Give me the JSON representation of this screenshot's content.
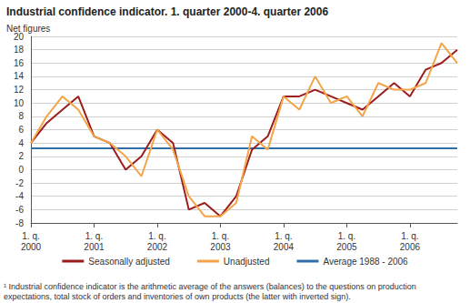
{
  "chart_data": {
    "type": "line",
    "title": "Industrial confidence indicator. 1. quarter 2000-4. quarter 2006",
    "y_label": "Net figures",
    "note": "¹ Industrial confidence indicator is the arithmetic average of the answers (balances) to the questions on production expectations, total stock of orders and inventories of own products (the latter with inverted sign).",
    "categories": [
      "1. q.\n2000",
      null,
      null,
      null,
      "1. q.\n2001",
      null,
      null,
      null,
      "1. q.\n2002",
      null,
      null,
      null,
      "1. q.\n2003",
      null,
      null,
      null,
      "1. q.\n2004",
      null,
      null,
      null,
      "1. q.\n2005",
      null,
      null,
      null,
      "1. q.\n2006",
      null,
      null,
      null
    ],
    "series": [
      {
        "name": "Seasonally adjusted",
        "color": "#9b1c1c",
        "values": [
          4,
          7,
          9,
          11,
          5,
          4,
          0,
          2,
          6,
          4,
          -6,
          -5,
          -7,
          -4,
          3,
          5,
          11,
          11,
          12,
          11,
          10,
          9,
          11,
          13,
          11,
          15,
          16,
          18
        ]
      },
      {
        "name": "Unadjusted",
        "color": "#f4a447",
        "values": [
          4,
          8,
          11,
          9,
          5,
          4,
          2,
          -1,
          6,
          3,
          -4,
          -7,
          -7,
          -5,
          5,
          3,
          11,
          9,
          14,
          10,
          11,
          8,
          13,
          12,
          12,
          13,
          19,
          16
        ]
      },
      {
        "name": "Average 1988 - 2006",
        "color": "#2f6ea8",
        "values": [
          3.2,
          3.2,
          3.2,
          3.2,
          3.2,
          3.2,
          3.2,
          3.2,
          3.2,
          3.2,
          3.2,
          3.2,
          3.2,
          3.2,
          3.2,
          3.2,
          3.2,
          3.2,
          3.2,
          3.2,
          3.2,
          3.2,
          3.2,
          3.2,
          3.2,
          3.2,
          3.2,
          3.2
        ]
      }
    ],
    "ylim": [
      -8,
      20
    ],
    "yticks": [
      -8,
      -6,
      -4,
      -2,
      0,
      2,
      4,
      6,
      8,
      10,
      12,
      14,
      16,
      18,
      20
    ],
    "grid": true,
    "legend": "bottom"
  }
}
